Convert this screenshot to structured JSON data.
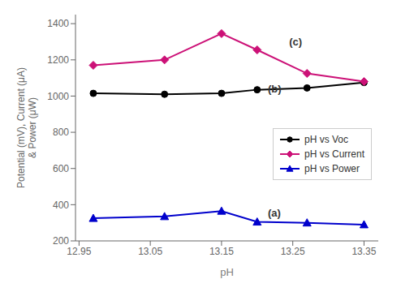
{
  "chart_data": {
    "type": "line",
    "x": [
      12.97,
      13.07,
      13.15,
      13.2,
      13.27,
      13.35
    ],
    "series": [
      {
        "name": "pH vs Voc",
        "color": "#000000",
        "marker": "circle",
        "values": [
          1015,
          1010,
          1015,
          1035,
          1045,
          1075
        ]
      },
      {
        "name": "pH vs Current",
        "color": "#cc1177",
        "marker": "diamond",
        "values": [
          1170,
          1200,
          1345,
          1255,
          1125,
          1080
        ]
      },
      {
        "name": "pH vs Power",
        "color": "#0000cc",
        "marker": "triangle",
        "values": [
          325,
          335,
          365,
          305,
          300,
          290
        ]
      }
    ],
    "xlabel": "pH",
    "ylabel": "Potential (mV), Current (μA)\n& Power (μW)",
    "xlim": [
      12.945,
      13.37
    ],
    "ylim": [
      200,
      1450
    ],
    "xticks": [
      12.95,
      13.05,
      13.15,
      13.25,
      13.35
    ],
    "yticks": [
      200,
      400,
      600,
      800,
      1000,
      1200,
      1400
    ],
    "annotations": [
      {
        "text": "(a)",
        "x": 13.215,
        "y": 320
      },
      {
        "text": "(b)",
        "x": 13.215,
        "y": 1005
      },
      {
        "text": "(c)",
        "x": 13.245,
        "y": 1265
      }
    ],
    "grid": false,
    "legend": "right"
  }
}
